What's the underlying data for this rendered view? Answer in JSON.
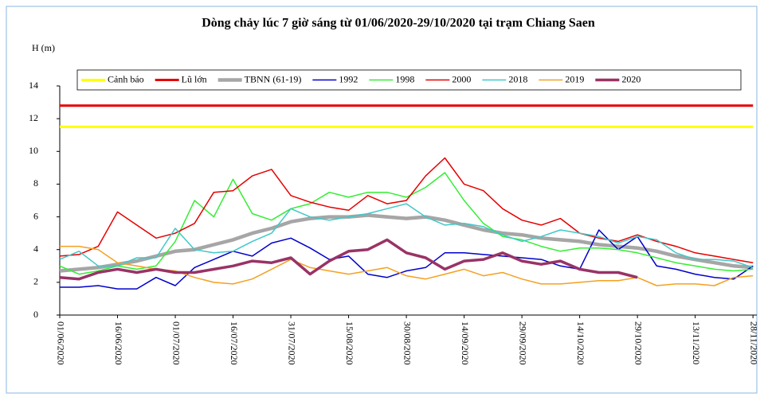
{
  "chart_data": {
    "type": "line",
    "title": "Dòng chảy lúc 7 giờ sáng từ 01/06/2020-29/10/2020 tại trạm Chiang Saen",
    "y_label": "H (m)",
    "x": [
      "01/06/2020",
      "06/06/2020",
      "11/06/2020",
      "16/06/2020",
      "21/06/2020",
      "26/06/2020",
      "01/07/2020",
      "06/07/2020",
      "11/07/2020",
      "16/07/2020",
      "21/07/2020",
      "26/07/2020",
      "31/07/2020",
      "05/08/2020",
      "10/08/2020",
      "15/08/2020",
      "20/08/2020",
      "25/08/2020",
      "30/08/2020",
      "04/09/2020",
      "09/09/2020",
      "14/09/2020",
      "19/09/2020",
      "24/09/2020",
      "29/09/2020",
      "04/10/2020",
      "09/10/2020",
      "14/10/2020",
      "19/10/2020",
      "24/10/2020",
      "29/10/2020",
      "03/11/2020",
      "08/11/2020",
      "13/11/2020",
      "18/11/2020",
      "23/11/2020",
      "28/11/2020"
    ],
    "xlim": [
      "01/06/2020",
      "29/11/2020"
    ],
    "xticks": [
      "01/06/2020",
      "16/06/2020",
      "01/07/2020",
      "16/07/2020",
      "31/07/2020",
      "15/08/2020",
      "30/08/2020",
      "14/09/2020",
      "29/09/2020",
      "14/10/2020",
      "29/10/2020",
      "13/11/2020",
      "28/11/2020"
    ],
    "ylim": [
      0,
      14
    ],
    "yticks": [
      0,
      2,
      4,
      6,
      8,
      10,
      12,
      14
    ],
    "grid": false,
    "legend": "top",
    "series": [
      {
        "name": "Cảnh báo",
        "color": "#ffff00",
        "values": [
          11.5,
          11.5,
          11.5,
          11.5,
          11.5,
          11.5,
          11.5,
          11.5,
          11.5,
          11.5,
          11.5,
          11.5,
          11.5,
          11.5,
          11.5,
          11.5,
          11.5,
          11.5,
          11.5,
          11.5,
          11.5,
          11.5,
          11.5,
          11.5,
          11.5,
          11.5,
          11.5,
          11.5,
          11.5,
          11.5,
          11.5,
          11.5,
          11.5,
          11.5,
          11.5,
          11.5,
          11.5
        ]
      },
      {
        "name": "Lũ lớn",
        "color": "#e60000",
        "values": [
          12.8,
          12.8,
          12.8,
          12.8,
          12.8,
          12.8,
          12.8,
          12.8,
          12.8,
          12.8,
          12.8,
          12.8,
          12.8,
          12.8,
          12.8,
          12.8,
          12.8,
          12.8,
          12.8,
          12.8,
          12.8,
          12.8,
          12.8,
          12.8,
          12.8,
          12.8,
          12.8,
          12.8,
          12.8,
          12.8,
          12.8,
          12.8,
          12.8,
          12.8,
          12.8,
          12.8,
          12.8
        ]
      },
      {
        "name": "TBNN (61-19)",
        "color": "#a6a6a6",
        "values": [
          2.7,
          2.8,
          2.9,
          3.1,
          3.3,
          3.6,
          3.9,
          4.0,
          4.3,
          4.6,
          5.0,
          5.3,
          5.7,
          5.9,
          6.0,
          6.0,
          6.1,
          6.0,
          5.9,
          6.0,
          5.8,
          5.5,
          5.2,
          5.0,
          4.9,
          4.7,
          4.6,
          4.5,
          4.3,
          4.2,
          4.1,
          3.9,
          3.6,
          3.4,
          3.2,
          3.0,
          2.9
        ]
      },
      {
        "name": "1992",
        "color": "#0000cc",
        "values": [
          1.7,
          1.7,
          1.8,
          1.6,
          1.6,
          2.3,
          1.8,
          2.9,
          3.4,
          3.9,
          3.6,
          4.4,
          4.7,
          4.1,
          3.4,
          3.6,
          2.5,
          2.3,
          2.7,
          2.9,
          3.8,
          3.8,
          3.7,
          3.6,
          3.5,
          3.4,
          3.0,
          2.8,
          5.2,
          4.0,
          4.8,
          3.0,
          2.8,
          2.5,
          2.3,
          2.2,
          3.0
        ]
      },
      {
        "name": "1998",
        "color": "#33ee33",
        "values": [
          3.0,
          2.5,
          2.7,
          3.0,
          2.8,
          3.0,
          4.5,
          7.0,
          6.0,
          8.3,
          6.2,
          5.8,
          6.5,
          6.8,
          7.5,
          7.2,
          7.5,
          7.5,
          7.2,
          7.8,
          8.7,
          7.0,
          5.6,
          4.8,
          4.6,
          4.2,
          3.9,
          4.1,
          4.1,
          4.0,
          3.8,
          3.5,
          3.2,
          3.0,
          2.8,
          2.7,
          2.8
        ]
      },
      {
        "name": "2000",
        "color": "#e60000",
        "values": [
          3.6,
          3.7,
          4.2,
          6.3,
          5.5,
          4.7,
          5.0,
          5.6,
          7.5,
          7.6,
          8.5,
          8.9,
          7.3,
          6.9,
          6.6,
          6.4,
          7.3,
          6.8,
          7.0,
          8.5,
          9.6,
          8.0,
          7.6,
          6.5,
          5.8,
          5.5,
          5.9,
          5.0,
          4.7,
          4.5,
          4.9,
          4.5,
          4.2,
          3.8,
          3.6,
          3.4,
          3.2
        ]
      },
      {
        "name": "2018",
        "color": "#40c8c8",
        "values": [
          3.4,
          3.9,
          3.0,
          3.0,
          3.5,
          3.5,
          5.3,
          4.0,
          3.8,
          3.9,
          4.5,
          5.0,
          6.5,
          6.0,
          5.8,
          6.0,
          6.2,
          6.5,
          6.8,
          6.0,
          5.5,
          5.6,
          5.4,
          4.9,
          4.5,
          4.8,
          5.2,
          5.0,
          4.8,
          4.4,
          4.8,
          4.6,
          3.8,
          3.4,
          3.4,
          3.3,
          2.9
        ]
      },
      {
        "name": "2019",
        "color": "#f5a020",
        "values": [
          4.2,
          4.2,
          4.0,
          3.2,
          3.0,
          2.8,
          2.7,
          2.3,
          2.0,
          1.9,
          2.2,
          2.8,
          3.4,
          2.9,
          2.7,
          2.5,
          2.7,
          2.9,
          2.4,
          2.2,
          2.5,
          2.8,
          2.4,
          2.6,
          2.2,
          1.9,
          1.9,
          2.0,
          2.1,
          2.1,
          2.3,
          1.8,
          1.9,
          1.9,
          1.8,
          2.3,
          2.4
        ]
      },
      {
        "name": "2020",
        "color": "#993366",
        "values": [
          2.3,
          2.2,
          2.6,
          2.8,
          2.6,
          2.8,
          2.6,
          2.6,
          2.8,
          3.0,
          3.3,
          3.2,
          3.5,
          2.5,
          3.3,
          3.9,
          4.0,
          4.6,
          3.8,
          3.5,
          2.8,
          3.3,
          3.4,
          3.8,
          3.3,
          3.1,
          3.3,
          2.8,
          2.6,
          2.6,
          2.3,
          null,
          null,
          null,
          null,
          null,
          null
        ]
      }
    ]
  }
}
